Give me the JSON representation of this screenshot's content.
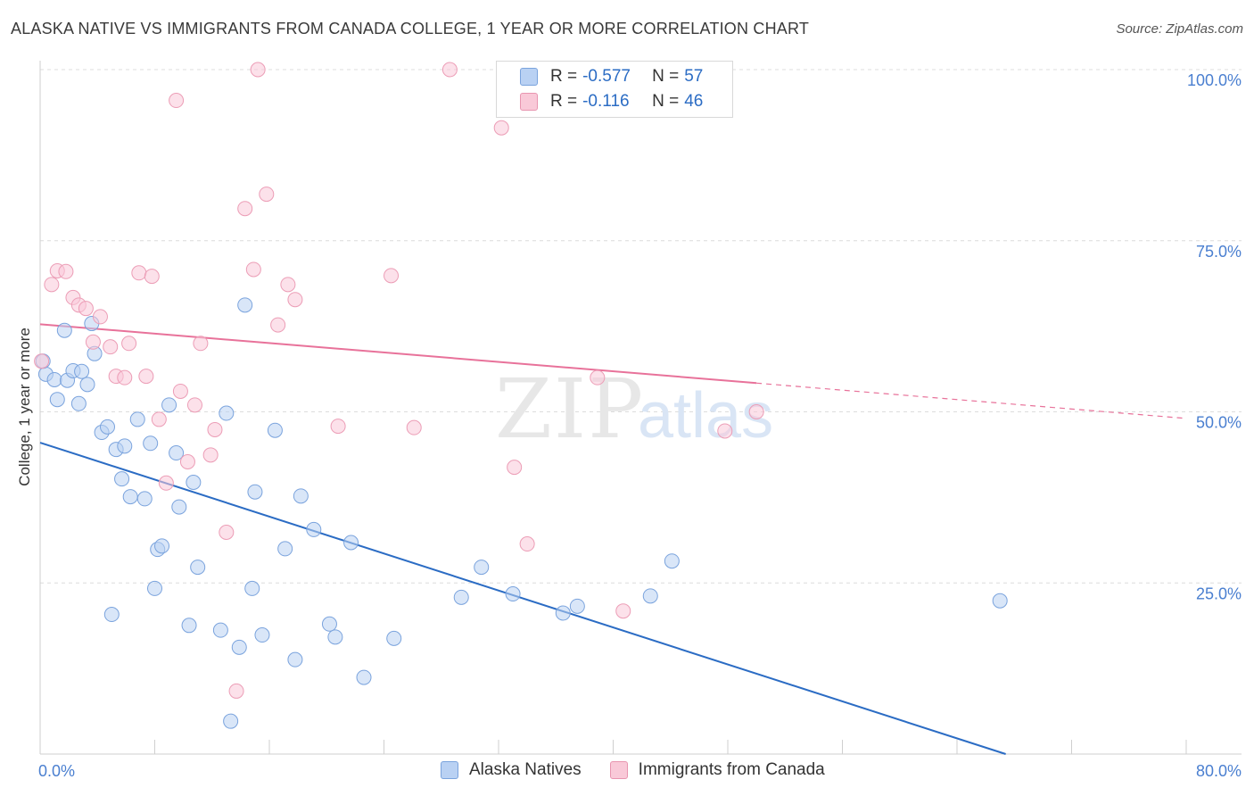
{
  "title": "ALASKA NATIVE VS IMMIGRANTS FROM CANADA COLLEGE, 1 YEAR OR MORE CORRELATION CHART",
  "source": "Source: ZipAtlas.com",
  "legend_top": {
    "rows": [
      {
        "r_label": "R =",
        "r_value": "-0.577",
        "n_label": "N =",
        "n_value": "57"
      },
      {
        "r_label": "R =",
        "r_value": "-0.116",
        "n_label": "N =",
        "n_value": "46"
      }
    ]
  },
  "watermark": {
    "part1": "ZIP",
    "part2": "atlas"
  },
  "colors": {
    "blue": "#2b6cc4",
    "blue_fill": "#b9d1f3",
    "pink": "#e8729a",
    "pink_fill": "#f9c9d8",
    "axis_text": "#4a7fd0"
  },
  "chart_data": {
    "type": "scatter",
    "xlabel": "",
    "ylabel": "College, 1 year or more",
    "xlim": [
      0,
      80
    ],
    "ylim": [
      0,
      100
    ],
    "x_tick_labels": [
      "0.0%",
      "80.0%"
    ],
    "y_tick_labels": [
      "25.0%",
      "50.0%",
      "75.0%",
      "100.0%"
    ],
    "y_ticks": [
      25,
      50,
      75,
      100
    ],
    "grid": true,
    "legend_position": "bottom",
    "series": [
      {
        "name": "Alaska Natives",
        "color": "#2b6cc4",
        "trend": {
          "x0": 0,
          "y0": 45.5,
          "x1": 67.4,
          "y1": 0
        },
        "points": [
          [
            0.4,
            55.5
          ],
          [
            1.0,
            54.7
          ],
          [
            1.2,
            51.8
          ],
          [
            1.7,
            61.9
          ],
          [
            1.9,
            54.6
          ],
          [
            2.3,
            56
          ],
          [
            2.7,
            51.2
          ],
          [
            2.9,
            55.9
          ],
          [
            3.3,
            54
          ],
          [
            3.6,
            62.9
          ],
          [
            3.8,
            58.5
          ],
          [
            4.3,
            47
          ],
          [
            4.7,
            47.8
          ],
          [
            5.0,
            20.4
          ],
          [
            5.3,
            44.5
          ],
          [
            5.9,
            45
          ],
          [
            5.7,
            40.2
          ],
          [
            6.3,
            37.6
          ],
          [
            6.8,
            48.9
          ],
          [
            7.3,
            37.3
          ],
          [
            7.7,
            45.4
          ],
          [
            8.0,
            24.2
          ],
          [
            8.2,
            29.9
          ],
          [
            8.5,
            30.4
          ],
          [
            9.0,
            51
          ],
          [
            9.5,
            44
          ],
          [
            9.7,
            36.1
          ],
          [
            10.4,
            18.8
          ],
          [
            10.7,
            39.7
          ],
          [
            11.0,
            27.3
          ],
          [
            12.6,
            18.1
          ],
          [
            13.0,
            49.8
          ],
          [
            13.3,
            4.8
          ],
          [
            13.9,
            15.6
          ],
          [
            14.3,
            65.6
          ],
          [
            14.8,
            24.2
          ],
          [
            15.0,
            38.3
          ],
          [
            15.5,
            17.4
          ],
          [
            16.4,
            47.3
          ],
          [
            17.1,
            30
          ],
          [
            17.8,
            13.8
          ],
          [
            18.2,
            37.7
          ],
          [
            19.1,
            32.8
          ],
          [
            20.2,
            19
          ],
          [
            20.6,
            17.1
          ],
          [
            21.7,
            30.9
          ],
          [
            22.6,
            11.2
          ],
          [
            24.7,
            16.9
          ],
          [
            29.4,
            22.9
          ],
          [
            30.8,
            27.3
          ],
          [
            33.0,
            23.4
          ],
          [
            36.5,
            20.6
          ],
          [
            37.5,
            21.6
          ],
          [
            42.6,
            23.1
          ],
          [
            44.1,
            28.2
          ],
          [
            67.0,
            22.4
          ],
          [
            0.2,
            57.4
          ]
        ]
      },
      {
        "name": "Immigrants from Canada",
        "color": "#e8729a",
        "trend": {
          "x0": 0,
          "y0": 62.8,
          "x1": 50,
          "y1": 54.2
        },
        "points": [
          [
            0.1,
            57.4
          ],
          [
            0.8,
            68.6
          ],
          [
            1.2,
            70.6
          ],
          [
            1.8,
            70.5
          ],
          [
            2.3,
            66.7
          ],
          [
            2.7,
            65.6
          ],
          [
            3.2,
            65.1
          ],
          [
            3.7,
            60.2
          ],
          [
            4.2,
            63.9
          ],
          [
            4.9,
            59.5
          ],
          [
            5.3,
            55.2
          ],
          [
            5.9,
            55
          ],
          [
            6.2,
            60
          ],
          [
            6.9,
            70.3
          ],
          [
            7.4,
            55.2
          ],
          [
            7.8,
            69.8
          ],
          [
            8.3,
            48.9
          ],
          [
            8.8,
            39.6
          ],
          [
            9.5,
            95.5
          ],
          [
            9.8,
            53
          ],
          [
            10.3,
            42.7
          ],
          [
            10.8,
            51
          ],
          [
            11.2,
            60
          ],
          [
            11.9,
            43.7
          ],
          [
            12.2,
            47.4
          ],
          [
            13.0,
            32.4
          ],
          [
            13.7,
            9.2
          ],
          [
            14.3,
            79.7
          ],
          [
            14.9,
            70.8
          ],
          [
            15.2,
            100
          ],
          [
            15.8,
            81.8
          ],
          [
            16.6,
            62.7
          ],
          [
            17.3,
            68.6
          ],
          [
            17.8,
            66.4
          ],
          [
            20.8,
            47.9
          ],
          [
            24.5,
            69.9
          ],
          [
            26.1,
            47.7
          ],
          [
            28.6,
            100
          ],
          [
            32.2,
            91.5
          ],
          [
            33.1,
            41.9
          ],
          [
            34.0,
            30.7
          ],
          [
            38.9,
            55
          ],
          [
            40.7,
            20.9
          ],
          [
            47.8,
            47.2
          ],
          [
            50.0,
            50
          ],
          [
            33.7,
            100
          ]
        ]
      }
    ]
  },
  "bottom_legend": {
    "items": [
      "Alaska Natives",
      "Immigrants from Canada"
    ]
  }
}
